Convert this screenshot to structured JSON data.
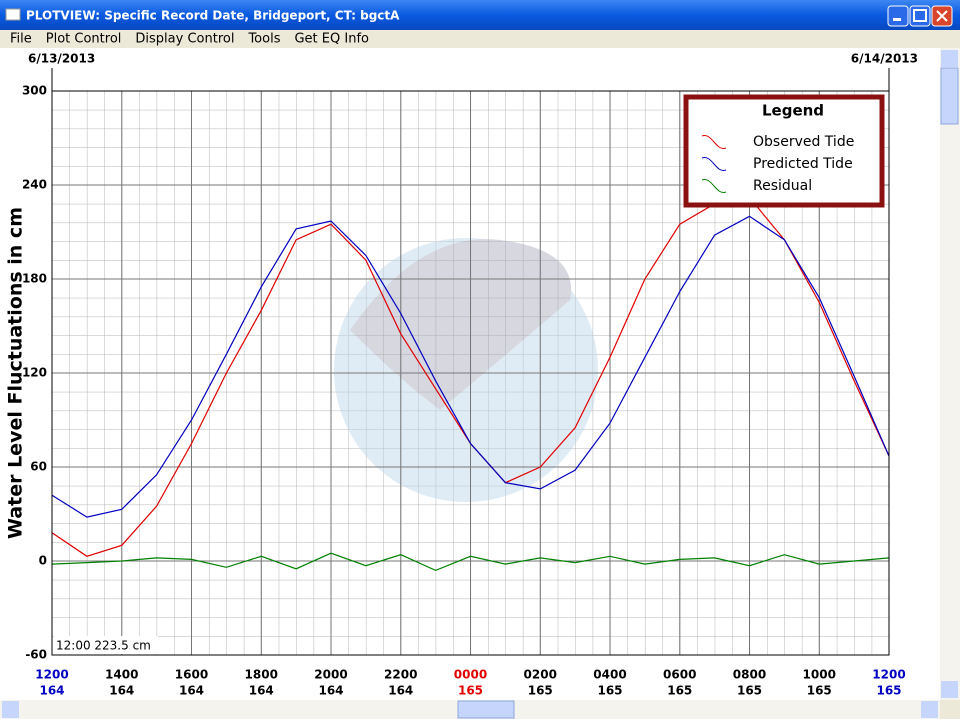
{
  "window": {
    "title": "PLOTVIEW: Specific Record Date, Bridgeport, CT: bgctA",
    "menu": [
      "File",
      "Plot Control",
      "Display Control",
      "Tools",
      "Get EQ Info"
    ]
  },
  "chart_data": {
    "type": "line",
    "start_date": "6/13/2013",
    "end_date": "6/14/2013",
    "ylabel": "Water Level Fluctuations in cm",
    "annotation": "12:00 223.5 cm",
    "legend_title": "Legend",
    "x": [
      0,
      1,
      2,
      3,
      4,
      5,
      6,
      7,
      8,
      9,
      10,
      11,
      12,
      13,
      14,
      15,
      16,
      17,
      18,
      19,
      20,
      21,
      22,
      23,
      24
    ],
    "xlim": [
      0,
      24
    ],
    "xticks": [
      {
        "value": 0,
        "label": "1200"
      },
      {
        "value": 2,
        "label": "1400"
      },
      {
        "value": 4,
        "label": "1600"
      },
      {
        "value": 6,
        "label": "1800"
      },
      {
        "value": 8,
        "label": "2000"
      },
      {
        "value": 10,
        "label": "2200"
      },
      {
        "value": 12,
        "label": "0000"
      },
      {
        "value": 14,
        "label": "0200"
      },
      {
        "value": 16,
        "label": "0400"
      },
      {
        "value": 18,
        "label": "0600"
      },
      {
        "value": 20,
        "label": "0800"
      },
      {
        "value": 22,
        "label": "1000"
      },
      {
        "value": 24,
        "label": "1200"
      }
    ],
    "xtick_days": [
      "164",
      "164",
      "164",
      "164",
      "164",
      "164",
      "165",
      "165",
      "165",
      "165",
      "165",
      "165",
      "165"
    ],
    "xtick_colors": [
      "#0000c0",
      "#000",
      "#000",
      "#000",
      "#000",
      "#000",
      "#e00000",
      "#000",
      "#000",
      "#000",
      "#000",
      "#000",
      "#0000c0"
    ],
    "ylim": [
      -60,
      300
    ],
    "yticks": [
      -60,
      0,
      60,
      120,
      180,
      240,
      300
    ],
    "grid": true,
    "legend": "upper right",
    "series": [
      {
        "name": "Observed Tide",
        "color": "#e00000",
        "values": [
          18,
          3,
          10,
          35,
          75,
          120,
          160,
          205,
          215,
          192,
          145,
          110,
          75,
          50,
          60,
          85,
          130,
          180,
          215,
          228,
          232,
          205,
          165,
          115,
          67
        ]
      },
      {
        "name": "Predicted Tide",
        "color": "#0000c0",
        "values": [
          42,
          28,
          33,
          55,
          90,
          132,
          175,
          212,
          217,
          195,
          158,
          115,
          75,
          50,
          46,
          58,
          88,
          130,
          172,
          208,
          220,
          205,
          168,
          118,
          67
        ]
      },
      {
        "name": "Residual",
        "color": "#008000",
        "values": [
          -2,
          -1,
          0,
          2,
          1,
          -4,
          3,
          -5,
          5,
          -3,
          4,
          -6,
          3,
          -2,
          2,
          -1,
          3,
          -2,
          1,
          2,
          -3,
          4,
          -2,
          0,
          2
        ]
      }
    ]
  }
}
